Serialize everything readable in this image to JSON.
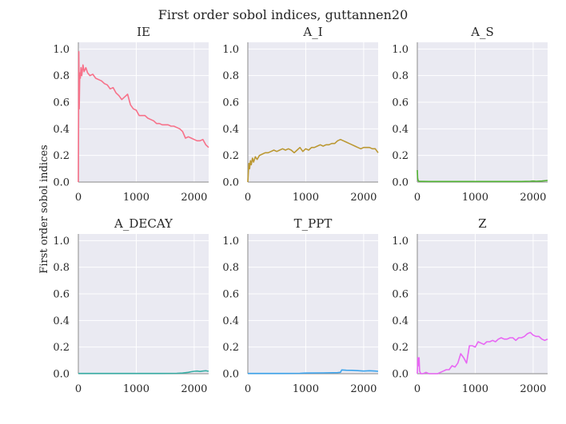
{
  "figure": {
    "suptitle": "First order sobol indices, guttannen20",
    "ylabel": "First order sobol indices"
  },
  "style": {
    "panel_bg": "#eaeaf2",
    "grid": "#ffffff",
    "spine": "#9e9e9e"
  },
  "chart_data": [
    {
      "type": "line",
      "title": "IE",
      "color": "#f77189",
      "xlim": [
        0,
        2250
      ],
      "ylim": [
        0,
        1.05
      ],
      "xticks": [
        0,
        1000,
        2000
      ],
      "yticks": [
        0.0,
        0.2,
        0.4,
        0.6,
        0.8,
        1.0
      ],
      "xtick_labels": [
        "0",
        "1000",
        "2000"
      ],
      "ytick_labels": [
        "0.0",
        "0.2",
        "0.4",
        "0.6",
        "0.8",
        "1.0"
      ],
      "series": [
        {
          "x": [
            0,
            8,
            15,
            25,
            35,
            45,
            60,
            80,
            100,
            130,
            160,
            200,
            250,
            300,
            350,
            400,
            450,
            500,
            550,
            600,
            650,
            700,
            750,
            800,
            850,
            900,
            950,
            1000,
            1050,
            1100,
            1150,
            1200,
            1250,
            1300,
            1350,
            1400,
            1450,
            1500,
            1550,
            1600,
            1650,
            1700,
            1750,
            1800,
            1850,
            1900,
            1950,
            2000,
            2050,
            2100,
            2150,
            2200,
            2250
          ],
          "y": [
            0.0,
            0.98,
            0.55,
            0.82,
            0.78,
            0.86,
            0.8,
            0.88,
            0.83,
            0.86,
            0.82,
            0.8,
            0.81,
            0.78,
            0.77,
            0.76,
            0.74,
            0.73,
            0.7,
            0.71,
            0.67,
            0.65,
            0.62,
            0.64,
            0.66,
            0.58,
            0.55,
            0.54,
            0.5,
            0.5,
            0.5,
            0.48,
            0.47,
            0.46,
            0.44,
            0.44,
            0.43,
            0.43,
            0.43,
            0.42,
            0.42,
            0.41,
            0.4,
            0.38,
            0.33,
            0.34,
            0.33,
            0.32,
            0.31,
            0.31,
            0.32,
            0.28,
            0.26
          ]
        }
      ]
    },
    {
      "type": "line",
      "title": "A_I",
      "color": "#bb9832",
      "xlim": [
        0,
        2250
      ],
      "ylim": [
        0,
        1.05
      ],
      "xticks": [
        0,
        1000,
        2000
      ],
      "yticks": [
        0.0,
        0.2,
        0.4,
        0.6,
        0.8,
        1.0
      ],
      "xtick_labels": [
        "0",
        "1000",
        "2000"
      ],
      "ytick_labels": [
        "0.0",
        "0.2",
        "0.4",
        "0.6",
        "0.8",
        "1.0"
      ],
      "series": [
        {
          "x": [
            0,
            10,
            20,
            30,
            45,
            60,
            80,
            100,
            130,
            160,
            200,
            250,
            300,
            350,
            400,
            450,
            500,
            550,
            600,
            650,
            700,
            750,
            800,
            850,
            900,
            950,
            1000,
            1050,
            1100,
            1150,
            1200,
            1250,
            1300,
            1350,
            1400,
            1450,
            1500,
            1550,
            1600,
            1650,
            1700,
            1750,
            1800,
            1850,
            1900,
            1950,
            2000,
            2050,
            2100,
            2150,
            2200,
            2250
          ],
          "y": [
            0.0,
            0.08,
            0.14,
            0.1,
            0.16,
            0.13,
            0.18,
            0.15,
            0.19,
            0.17,
            0.2,
            0.21,
            0.22,
            0.22,
            0.23,
            0.24,
            0.23,
            0.24,
            0.25,
            0.24,
            0.25,
            0.24,
            0.22,
            0.24,
            0.26,
            0.23,
            0.25,
            0.24,
            0.26,
            0.26,
            0.27,
            0.28,
            0.27,
            0.28,
            0.28,
            0.29,
            0.29,
            0.31,
            0.32,
            0.31,
            0.3,
            0.29,
            0.28,
            0.27,
            0.26,
            0.25,
            0.26,
            0.26,
            0.26,
            0.25,
            0.25,
            0.22
          ]
        }
      ]
    },
    {
      "type": "line",
      "title": "A_S",
      "color": "#50b131",
      "xlim": [
        0,
        2250
      ],
      "ylim": [
        0,
        1.05
      ],
      "xticks": [
        0,
        1000,
        2000
      ],
      "yticks": [
        0.0,
        0.2,
        0.4,
        0.6,
        0.8,
        1.0
      ],
      "xtick_labels": [
        "0",
        "1000",
        "2000"
      ],
      "ytick_labels": [
        "0.0",
        "0.2",
        "0.4",
        "0.6",
        "0.8",
        "1.0"
      ],
      "series": [
        {
          "x": [
            0,
            5,
            15,
            30,
            60,
            200,
            600,
            1000,
            1400,
            1800,
            1950,
            2000,
            2050,
            2150,
            2250
          ],
          "y": [
            0.09,
            0.03,
            0.01,
            0.005,
            0.005,
            0.004,
            0.004,
            0.004,
            0.004,
            0.004,
            0.006,
            0.008,
            0.006,
            0.008,
            0.012
          ]
        }
      ]
    },
    {
      "type": "line",
      "title": "A_DECAY",
      "color": "#36ada4",
      "xlim": [
        0,
        2250
      ],
      "ylim": [
        0,
        1.05
      ],
      "xticks": [
        0,
        1000,
        2000
      ],
      "yticks": [
        0.0,
        0.2,
        0.4,
        0.6,
        0.8,
        1.0
      ],
      "xtick_labels": [
        "0",
        "1000",
        "2000"
      ],
      "ytick_labels": [
        "0.0",
        "0.2",
        "0.4",
        "0.6",
        "0.8",
        "1.0"
      ],
      "series": [
        {
          "x": [
            0,
            200,
            600,
            1000,
            1400,
            1700,
            1800,
            1900,
            1950,
            2000,
            2050,
            2100,
            2150,
            2200,
            2250
          ],
          "y": [
            0.002,
            0.002,
            0.002,
            0.002,
            0.002,
            0.003,
            0.005,
            0.01,
            0.015,
            0.018,
            0.02,
            0.017,
            0.02,
            0.022,
            0.018
          ]
        }
      ]
    },
    {
      "type": "line",
      "title": "T_PPT",
      "color": "#3ba3ec",
      "xlim": [
        0,
        2250
      ],
      "ylim": [
        0,
        1.05
      ],
      "xticks": [
        0,
        1000,
        2000
      ],
      "yticks": [
        0.0,
        0.2,
        0.4,
        0.6,
        0.8,
        1.0
      ],
      "xtick_labels": [
        "0",
        "1000",
        "2000"
      ],
      "ytick_labels": [
        "0.0",
        "0.2",
        "0.4",
        "0.6",
        "0.8",
        "1.0"
      ],
      "series": [
        {
          "x": [
            0,
            300,
            600,
            900,
            1000,
            1300,
            1550,
            1600,
            1620,
            1700,
            1800,
            1900,
            2000,
            2100,
            2200,
            2250
          ],
          "y": [
            0.002,
            0.002,
            0.002,
            0.003,
            0.005,
            0.006,
            0.008,
            0.01,
            0.028,
            0.026,
            0.025,
            0.023,
            0.02,
            0.022,
            0.02,
            0.018
          ]
        }
      ]
    },
    {
      "type": "line",
      "title": "Z",
      "color": "#e866f4",
      "xlim": [
        0,
        2250
      ],
      "ylim": [
        0,
        1.05
      ],
      "xticks": [
        0,
        1000,
        2000
      ],
      "yticks": [
        0.0,
        0.2,
        0.4,
        0.6,
        0.8,
        1.0
      ],
      "xtick_labels": [
        "0",
        "1000",
        "2000"
      ],
      "ytick_labels": [
        "0.0",
        "0.2",
        "0.4",
        "0.6",
        "0.8",
        "1.0"
      ],
      "series": [
        {
          "x": [
            0,
            10,
            20,
            30,
            40,
            60,
            100,
            150,
            200,
            250,
            300,
            350,
            400,
            450,
            500,
            550,
            600,
            650,
            700,
            750,
            800,
            850,
            900,
            950,
            1000,
            1050,
            1100,
            1150,
            1200,
            1250,
            1300,
            1350,
            1400,
            1450,
            1500,
            1550,
            1600,
            1650,
            1700,
            1750,
            1800,
            1850,
            1900,
            1950,
            2000,
            2050,
            2100,
            2150,
            2200,
            2250
          ],
          "y": [
            0.0,
            0.12,
            0.06,
            0.12,
            0.02,
            0.0,
            0.0,
            0.01,
            0.0,
            0.0,
            0.0,
            0.0,
            0.01,
            0.02,
            0.03,
            0.03,
            0.06,
            0.05,
            0.08,
            0.15,
            0.12,
            0.08,
            0.21,
            0.21,
            0.2,
            0.24,
            0.23,
            0.22,
            0.24,
            0.24,
            0.25,
            0.24,
            0.26,
            0.27,
            0.26,
            0.26,
            0.27,
            0.27,
            0.25,
            0.27,
            0.27,
            0.28,
            0.3,
            0.31,
            0.29,
            0.28,
            0.28,
            0.26,
            0.25,
            0.26
          ]
        }
      ]
    }
  ]
}
